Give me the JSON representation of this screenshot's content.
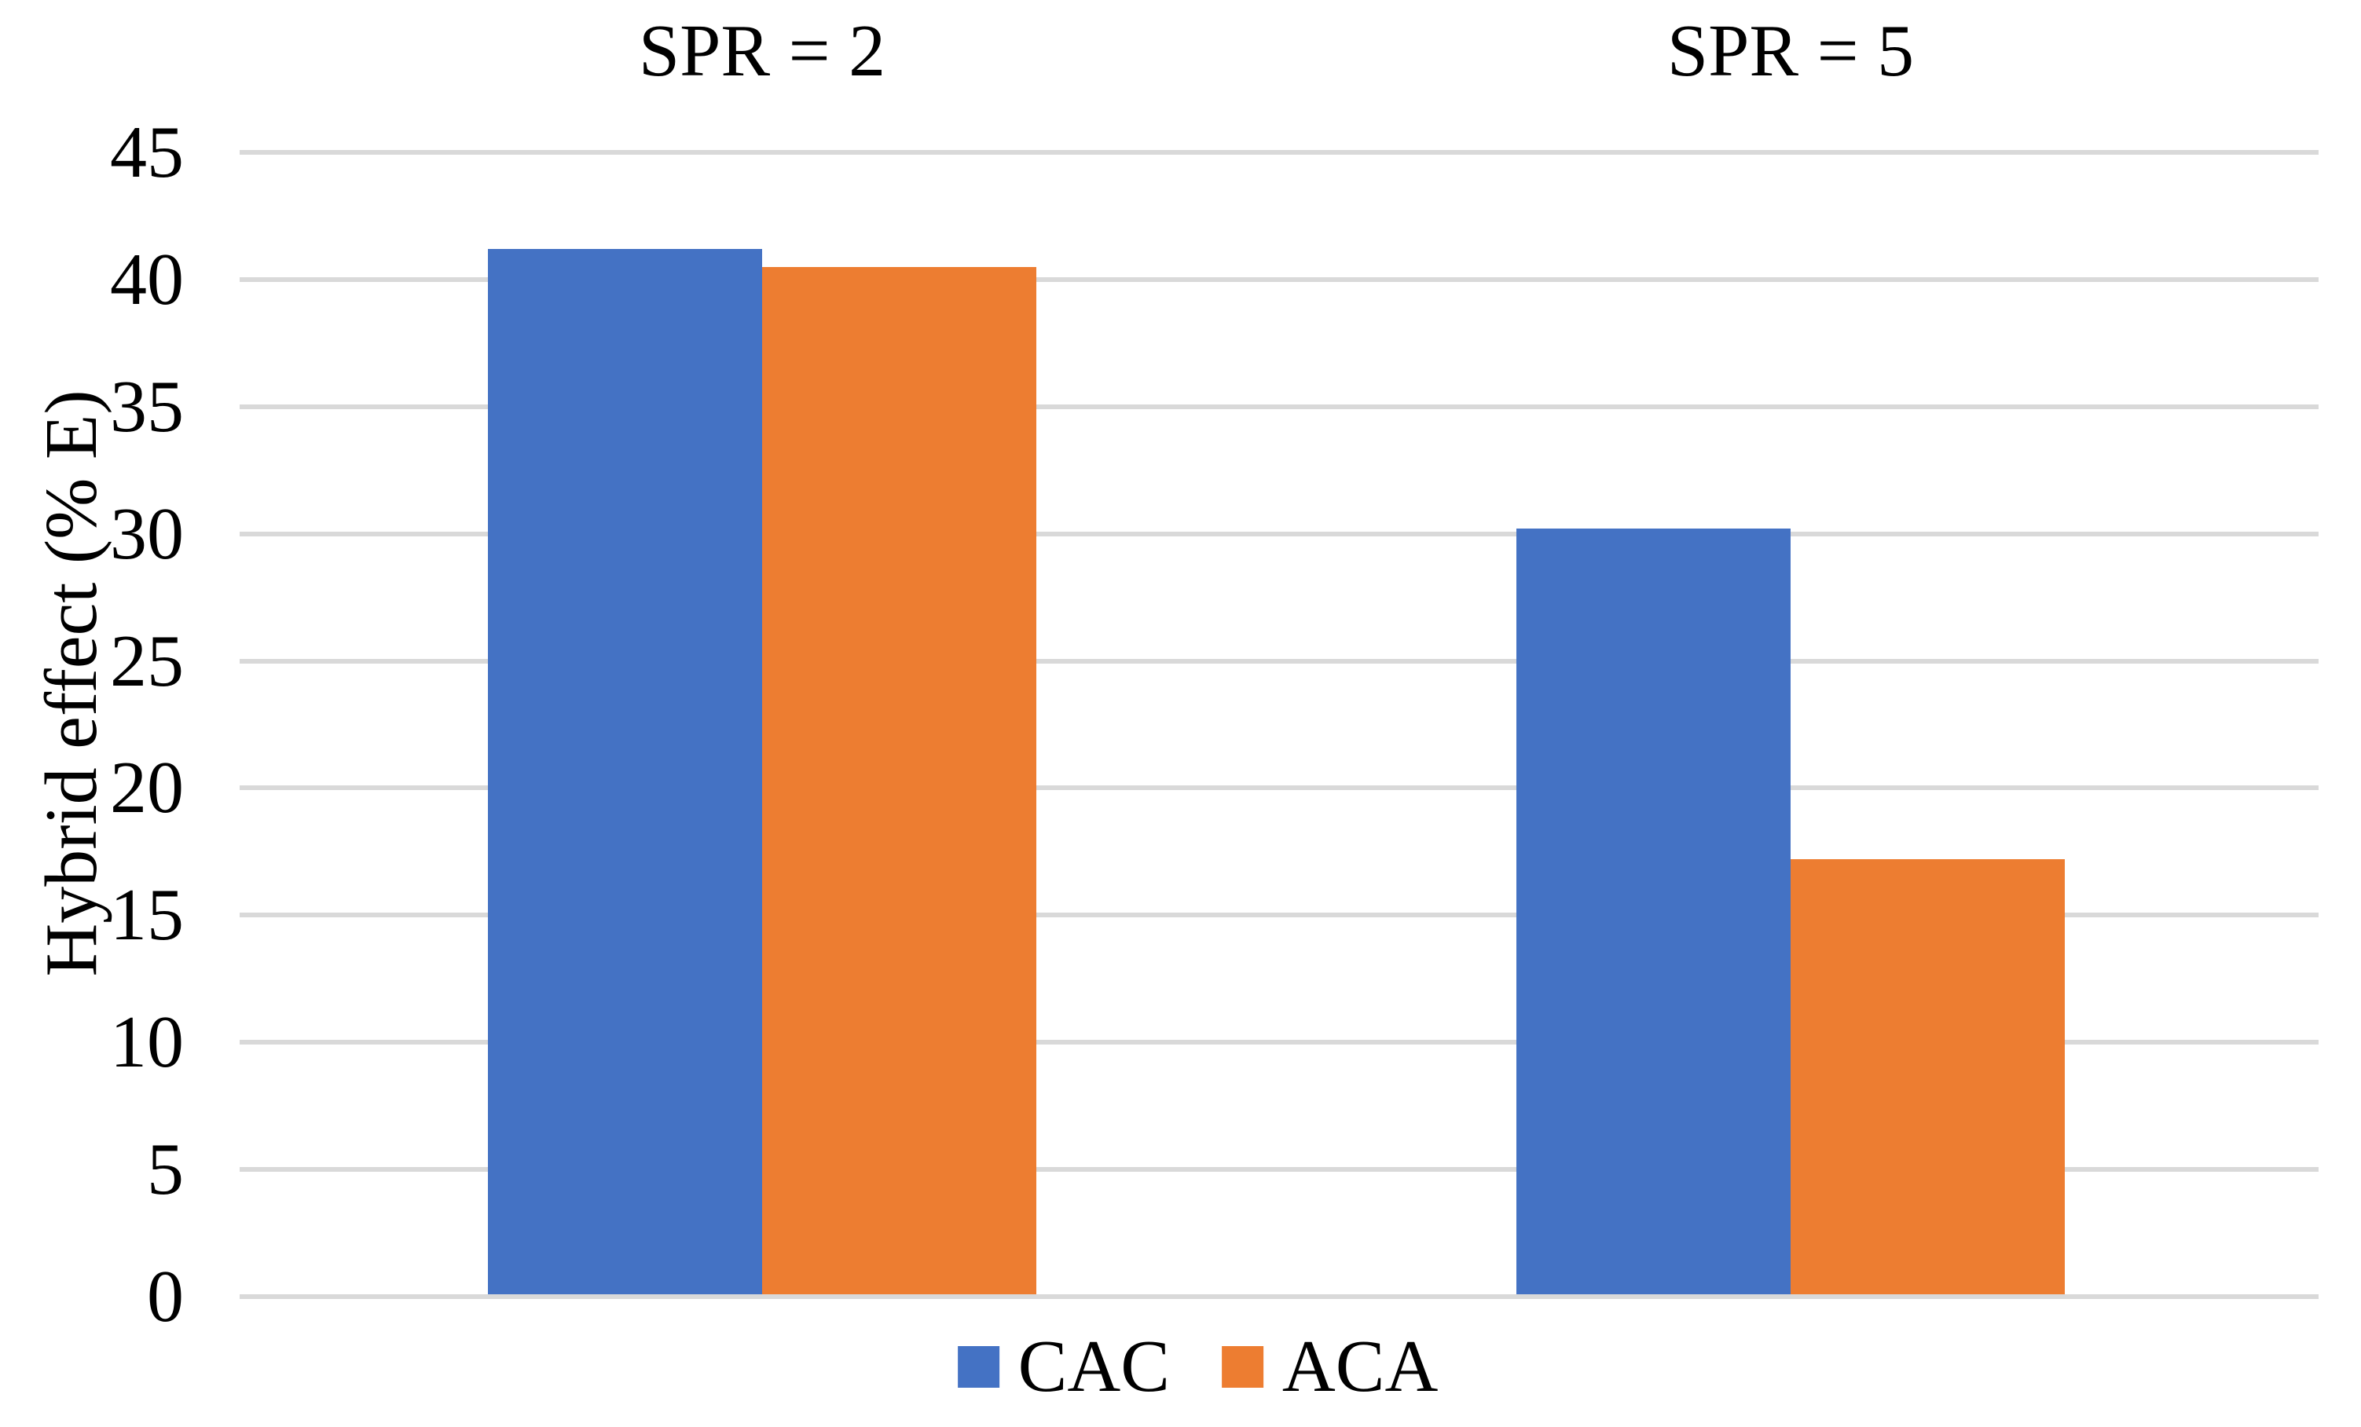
{
  "chart_data": {
    "type": "bar",
    "categories": [
      "SPR = 2",
      "SPR = 5"
    ],
    "series": [
      {
        "name": "CAC",
        "color": "#4472C4",
        "values": [
          41.2,
          30.2
        ]
      },
      {
        "name": "ACA",
        "color": "#ED7D31",
        "values": [
          40.5,
          17.2
        ]
      }
    ],
    "title": "",
    "xlabel": "",
    "ylabel": "Hybrid effect (% E)",
    "ylim": [
      0,
      45
    ],
    "ytick_step": 5,
    "yticks": [
      0,
      5,
      10,
      15,
      20,
      25,
      30,
      35,
      40,
      45
    ],
    "grid": true,
    "gridline_color": "#D9D9D9",
    "background_color": "#FFFFFF",
    "text_color": "#000000",
    "legend_position": "bottom",
    "legend_entries": [
      "CAC",
      "ACA"
    ]
  }
}
